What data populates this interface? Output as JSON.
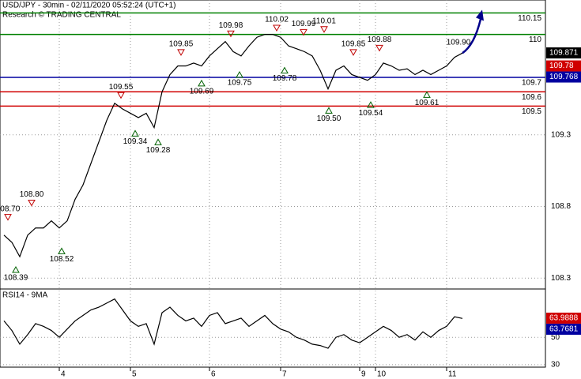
{
  "chart_data": {
    "type": "line",
    "title": "USD/JPY - 30min - 02/11/2020 05:52:24 (UTC+1)",
    "subtitle": "Research © TRADING CENTRAL",
    "categories": [
      null,
      null,
      null,
      null,
      null,
      null,
      null,
      "4",
      null,
      null,
      null,
      null,
      null,
      null,
      null,
      null,
      "5",
      null,
      null,
      null,
      null,
      null,
      null,
      null,
      null,
      null,
      "6",
      null,
      null,
      null,
      null,
      null,
      null,
      null,
      null,
      "7",
      null,
      null,
      null,
      null,
      null,
      null,
      null,
      null,
      null,
      "9",
      null,
      "10",
      null,
      null,
      null,
      null,
      null,
      null,
      null,
      null,
      "11",
      null,
      null
    ],
    "series": [
      {
        "name": "USD/JPY",
        "color": "#000000",
        "values": [
          108.6,
          108.55,
          108.45,
          108.6,
          108.65,
          108.65,
          108.7,
          108.65,
          108.7,
          108.85,
          108.95,
          109.1,
          109.25,
          109.4,
          109.52,
          109.48,
          109.45,
          109.42,
          109.45,
          109.35,
          109.6,
          109.72,
          109.78,
          109.78,
          109.8,
          109.78,
          109.85,
          109.9,
          109.95,
          109.88,
          109.85,
          109.92,
          109.98,
          110,
          110,
          109.98,
          109.92,
          109.9,
          109.88,
          109.85,
          109.75,
          109.62,
          109.75,
          109.78,
          109.72,
          109.7,
          109.68,
          109.72,
          109.8,
          109.78,
          109.75,
          109.76,
          109.72,
          109.75,
          109.72,
          109.75,
          109.78,
          109.84,
          109.87
        ]
      }
    ],
    "ylim": [
      108.23,
      110.24
    ],
    "yticks": [
      109.3,
      108.8,
      108.3
    ],
    "levels": [
      {
        "value": 110.15,
        "label": "110.15",
        "color": "#008000"
      },
      {
        "value": 110,
        "label": "110",
        "color": "#008000"
      },
      {
        "value": 109.7,
        "label": "109.7",
        "color": "#0000a0"
      },
      {
        "value": 109.6,
        "label": "109.6",
        "color": "#d00000"
      },
      {
        "value": 109.5,
        "label": "109.5",
        "color": "#d00000"
      }
    ],
    "price_tags": [
      {
        "value": 109.871,
        "color": "#000000"
      },
      {
        "value": 109.78,
        "color": "#d00000"
      },
      {
        "value": 109.768,
        "color": "#0000a0"
      }
    ],
    "annotations": [
      {
        "value": 108.7,
        "label": "108.70",
        "kind": "high"
      },
      {
        "value": 108.8,
        "label": "108.80",
        "kind": "high"
      },
      {
        "value": 108.39,
        "label": "108.39",
        "kind": "low"
      },
      {
        "value": 108.52,
        "label": "108.52",
        "kind": "low"
      },
      {
        "value": 109.55,
        "label": "109.55",
        "kind": "high"
      },
      {
        "value": 109.34,
        "label": "109.34",
        "kind": "low"
      },
      {
        "value": 109.28,
        "label": "109.28",
        "kind": "low"
      },
      {
        "value": 109.85,
        "label": "109.85",
        "kind": "high"
      },
      {
        "value": 109.69,
        "label": "109.69",
        "kind": "low"
      },
      {
        "value": 109.98,
        "label": "109.98",
        "kind": "high"
      },
      {
        "value": 109.75,
        "label": "109.75",
        "kind": "low"
      },
      {
        "value": 110.02,
        "label": "110.02",
        "kind": "high"
      },
      {
        "value": 109.78,
        "label": "109.78",
        "kind": "low"
      },
      {
        "value": 109.99,
        "label": "109.99",
        "kind": "high"
      },
      {
        "value": 110.01,
        "label": "110.01",
        "kind": "high"
      },
      {
        "value": 109.5,
        "label": "109.50",
        "kind": "low"
      },
      {
        "value": 109.85,
        "label": "109.85",
        "kind": "high"
      },
      {
        "value": 109.54,
        "label": "109.54",
        "kind": "low"
      },
      {
        "value": 109.88,
        "label": "109.88",
        "kind": "high"
      },
      {
        "value": 109.61,
        "label": "109.61",
        "kind": "low"
      },
      {
        "value": 109.9,
        "label": "109.90",
        "kind": "target"
      }
    ],
    "rsi": {
      "title": "RSI14 - 9MA",
      "color": "#000000",
      "values": [
        62,
        55,
        45,
        52,
        60,
        58,
        55,
        50,
        56,
        62,
        66,
        70,
        72,
        75,
        78,
        70,
        62,
        58,
        60,
        45,
        68,
        72,
        66,
        62,
        64,
        58,
        66,
        68,
        60,
        62,
        64,
        58,
        62,
        66,
        60,
        56,
        54,
        50,
        48,
        45,
        44,
        42,
        50,
        52,
        48,
        46,
        50,
        54,
        58,
        55,
        50,
        52,
        48,
        54,
        50,
        55,
        58,
        65,
        63.77
      ],
      "ylim": [
        28.2,
        85.3
      ],
      "yticks": [
        50,
        30
      ],
      "tags": [
        {
          "value": 63.9888,
          "color": "#d00000"
        },
        {
          "value": 63.7681,
          "color": "#0000a0"
        }
      ]
    }
  }
}
